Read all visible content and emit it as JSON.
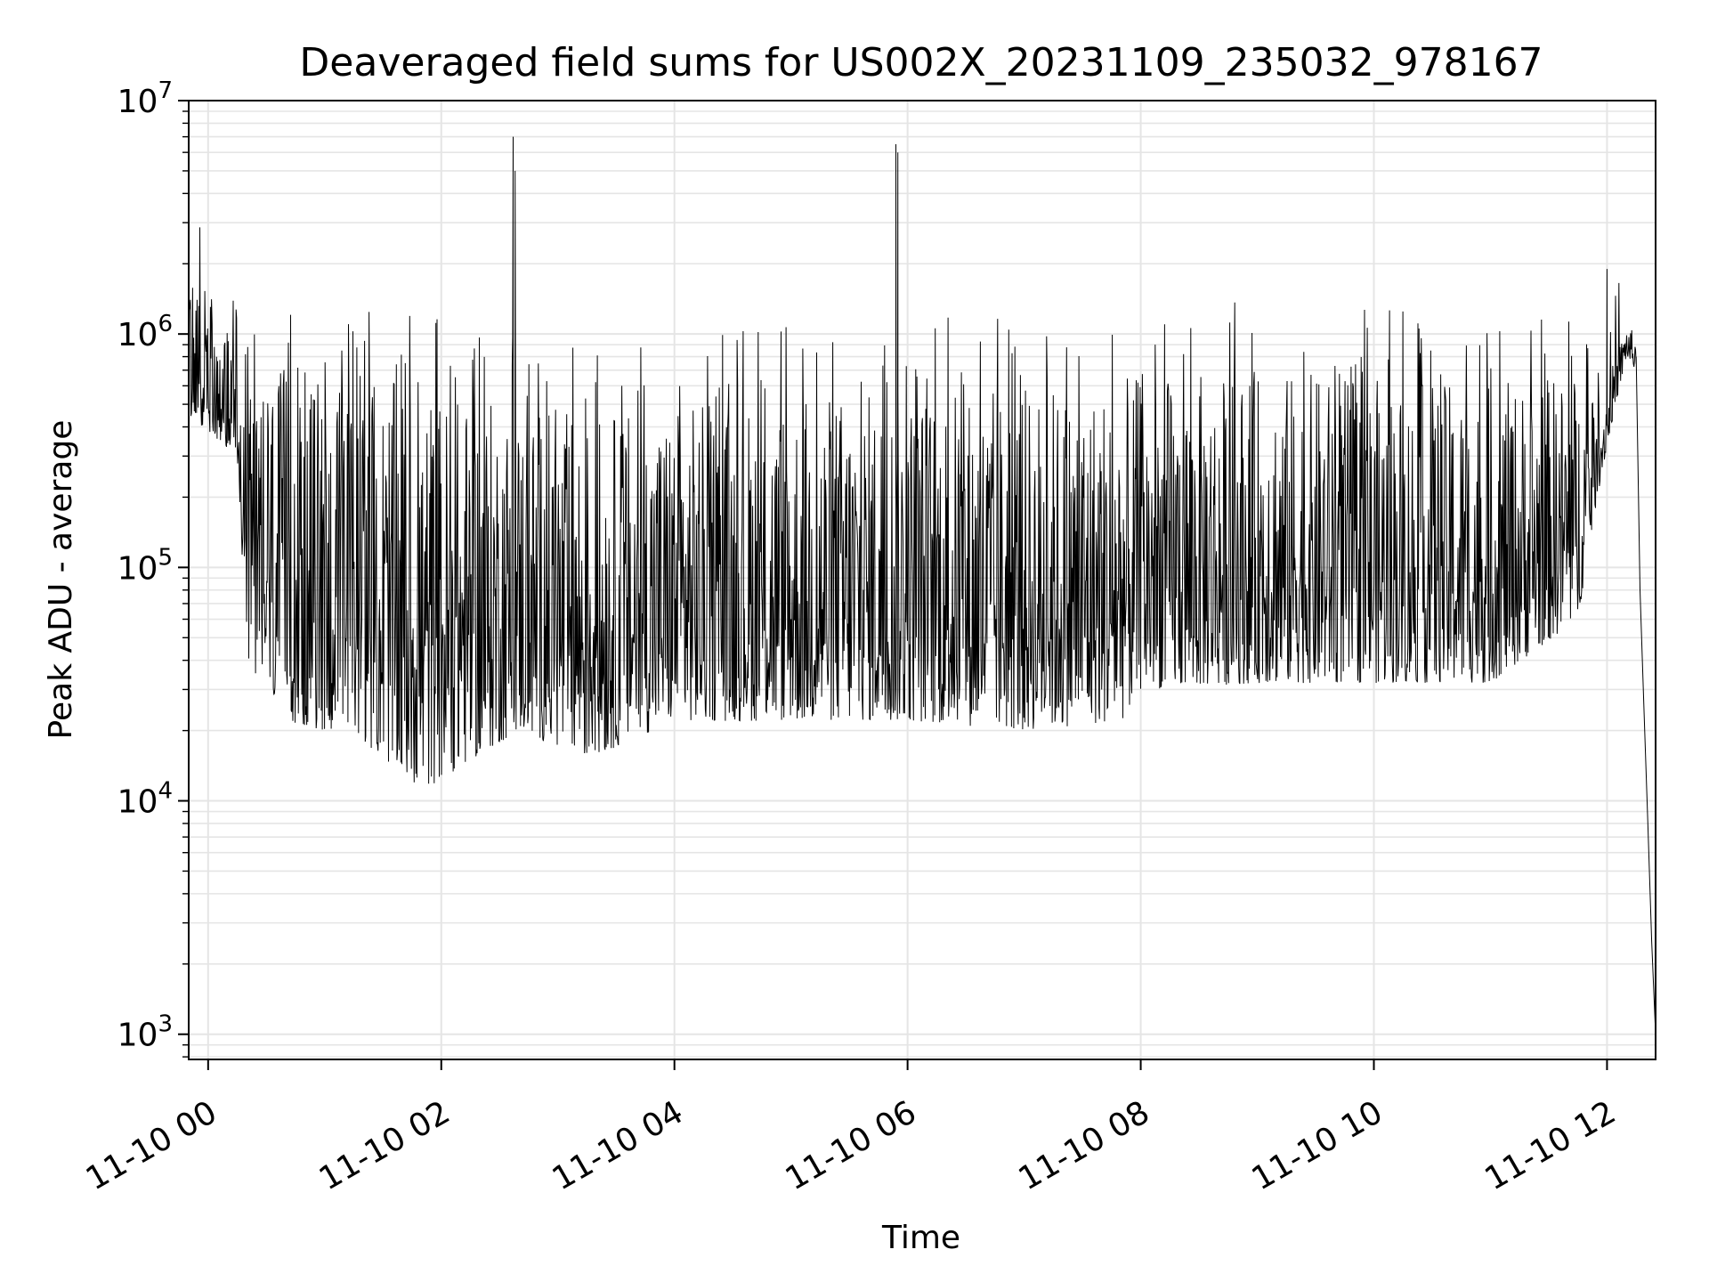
{
  "chart_data": {
    "type": "line",
    "title": "Deaveraged field sums for US002X_20231109_235032_978167",
    "xlabel": "Time",
    "ylabel": "Peak ADU - average",
    "yscale": "log",
    "xlim": [
      "2023-11-09 23:50",
      "2023-11-10 12:25"
    ],
    "ylim": [
      780,
      10000000
    ],
    "grid": true,
    "line_color": "#000000",
    "grid_color": "#e5e5e5",
    "x_ticks": [
      {
        "value": "2023-11-10 00:00",
        "label": "11-10 00"
      },
      {
        "value": "2023-11-10 02:00",
        "label": "11-10 02"
      },
      {
        "value": "2023-11-10 04:00",
        "label": "11-10 04"
      },
      {
        "value": "2023-11-10 06:00",
        "label": "11-10 06"
      },
      {
        "value": "2023-11-10 08:00",
        "label": "11-10 08"
      },
      {
        "value": "2023-11-10 10:00",
        "label": "11-10 10"
      },
      {
        "value": "2023-11-10 12:00",
        "label": "11-10 12"
      }
    ],
    "y_ticks": [
      {
        "value": 1000,
        "base": "10",
        "exp": "3"
      },
      {
        "value": 10000,
        "base": "10",
        "exp": "4"
      },
      {
        "value": 100000,
        "base": "10",
        "exp": "5"
      },
      {
        "value": 1000000,
        "base": "10",
        "exp": "6"
      },
      {
        "value": 10000000,
        "base": "10",
        "exp": "7"
      }
    ],
    "series": [
      {
        "band_envelope": [
          {
            "x": "2023-11-09 23:50",
            "lo": 450000,
            "hi": 1600000
          },
          {
            "x": "2023-11-10 00:15",
            "lo": 300000,
            "hi": 1400000
          },
          {
            "x": "2023-11-10 00:20",
            "lo": 40000,
            "hi": 800000
          },
          {
            "x": "2023-11-10 00:40",
            "lo": 22000,
            "hi": 700000
          },
          {
            "x": "2023-11-10 01:20",
            "lo": 18000,
            "hi": 650000
          },
          {
            "x": "2023-11-10 01:50",
            "lo": 11000,
            "hi": 600000
          },
          {
            "x": "2023-11-10 02:10",
            "lo": 14000,
            "hi": 550000
          },
          {
            "x": "2023-11-10 02:40",
            "lo": 20000,
            "hi": 500000
          },
          {
            "x": "2023-11-10 03:15",
            "lo": 15000,
            "hi": 450000
          },
          {
            "x": "2023-11-10 04:00",
            "lo": 22000,
            "hi": 500000
          },
          {
            "x": "2023-11-10 05:00",
            "lo": 22000,
            "hi": 550000
          },
          {
            "x": "2023-11-10 06:00",
            "lo": 22000,
            "hi": 600000
          },
          {
            "x": "2023-11-10 07:00",
            "lo": 20000,
            "hi": 600000
          },
          {
            "x": "2023-11-10 07:50",
            "lo": 22000,
            "hi": 650000
          },
          {
            "x": "2023-11-10 08:00",
            "lo": 30000,
            "hi": 650000
          },
          {
            "x": "2023-11-10 09:00",
            "lo": 32000,
            "hi": 700000
          },
          {
            "x": "2023-11-10 10:00",
            "lo": 32000,
            "hi": 650000
          },
          {
            "x": "2023-11-10 11:00",
            "lo": 32000,
            "hi": 600000
          },
          {
            "x": "2023-11-10 11:45",
            "lo": 60000,
            "hi": 700000
          },
          {
            "x": "2023-11-10 11:55",
            "lo": 200000,
            "hi": 400000
          },
          {
            "x": "2023-11-10 12:02",
            "lo": 400000,
            "hi": 700000
          },
          {
            "x": "2023-11-10 12:10",
            "lo": 800000,
            "hi": 1100000
          },
          {
            "x": "2023-11-10 12:15",
            "lo": 700000,
            "hi": 1000000
          }
        ],
        "spikes": [
          {
            "x": "2023-11-10 02:37",
            "y": 7000000
          },
          {
            "x": "2023-11-10 02:38",
            "y": 5000000
          },
          {
            "x": "2023-11-10 05:54",
            "y": 6500000
          },
          {
            "x": "2023-11-10 05:55",
            "y": 6000000
          },
          {
            "x": "2023-11-10 12:00",
            "y": 1900000
          }
        ],
        "tail": [
          {
            "x": "2023-11-10 12:15",
            "y": 800000
          },
          {
            "x": "2023-11-10 12:17",
            "y": 80000
          },
          {
            "x": "2023-11-10 12:19",
            "y": 25000
          },
          {
            "x": "2023-11-10 12:21",
            "y": 8000
          },
          {
            "x": "2023-11-10 12:23",
            "y": 2500
          },
          {
            "x": "2023-11-10 12:25",
            "y": 1000
          }
        ]
      }
    ]
  }
}
